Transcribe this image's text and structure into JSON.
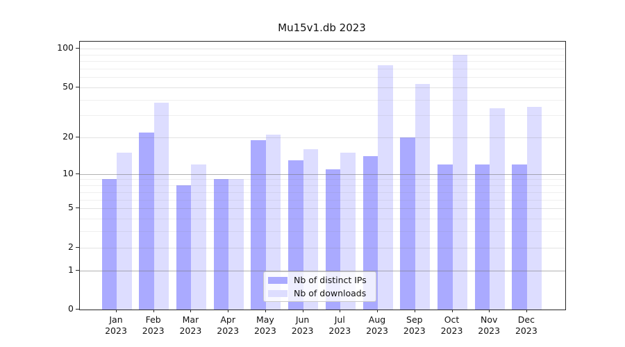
{
  "chart_data": {
    "type": "bar",
    "title": "Mu15v1.db 2023",
    "categories": [
      "Jan",
      "Feb",
      "Mar",
      "Apr",
      "May",
      "Jun",
      "Jul",
      "Aug",
      "Sep",
      "Oct",
      "Nov",
      "Dec"
    ],
    "year_label": "2023",
    "series": [
      {
        "name": "Nb of distinct IPs",
        "color": "#aaaaff",
        "values": [
          9,
          22,
          8,
          9,
          19,
          13,
          11,
          14,
          20,
          12,
          12,
          12
        ]
      },
      {
        "name": "Nb of downloads",
        "color": "#ddddff",
        "values": [
          15,
          38,
          12,
          9,
          21,
          16,
          15,
          74,
          53,
          90,
          34,
          35
        ]
      }
    ],
    "xlabel": "",
    "ylabel": "",
    "y_axis": {
      "scale": "log1p",
      "tick_labels": [
        "0",
        "1",
        "2",
        "5",
        "10",
        "20",
        "50",
        "100"
      ],
      "tick_values": [
        0,
        1,
        2,
        5,
        10,
        20,
        50,
        100
      ],
      "strong_gridlines": [
        1,
        10
      ],
      "medium_gridlines": [
        2,
        5,
        20,
        50,
        100
      ],
      "minor_gridlines": [
        3,
        4,
        6,
        7,
        8,
        9,
        30,
        40,
        60,
        70,
        80,
        90
      ],
      "ylim": [
        0,
        113
      ]
    },
    "legend_position": "lower center",
    "grid": true
  }
}
